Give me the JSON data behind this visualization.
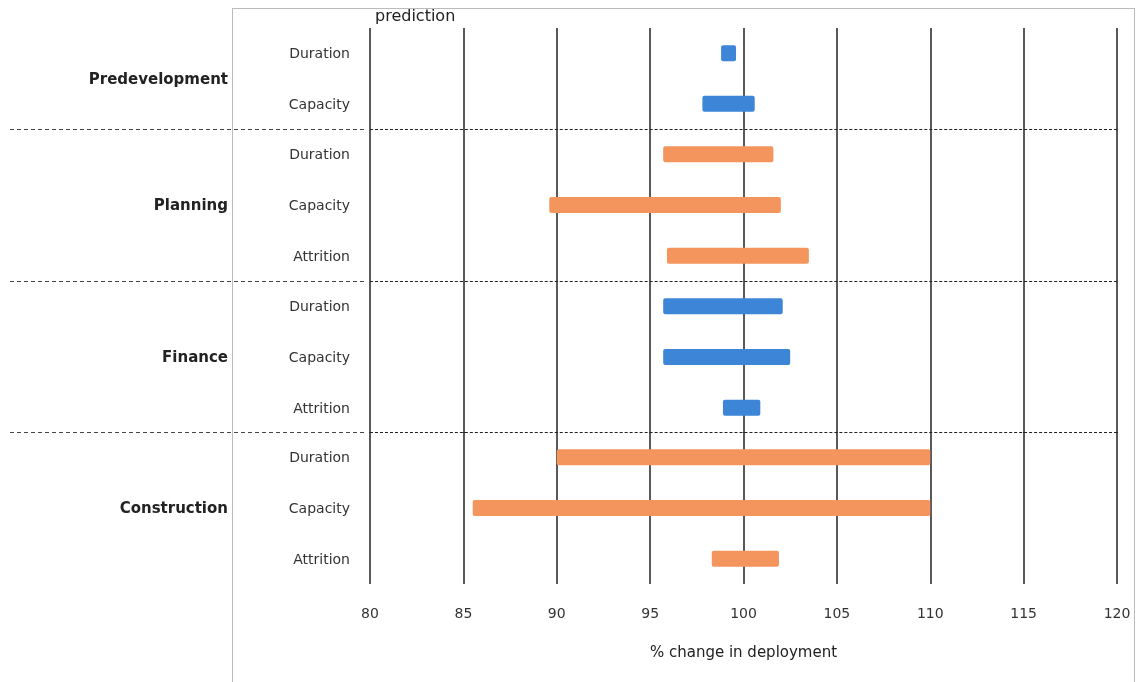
{
  "chart_data": [
    {
      "type": "bar",
      "orientation": "horizontal",
      "title": "prediction",
      "ylabel": "Predevelopment",
      "categories": [
        "Duration",
        "Capacity"
      ],
      "base": [
        98.8,
        97.8
      ],
      "values": [
        0.8,
        2.8
      ],
      "colors": [
        "#3d85d6",
        "#3d85d6"
      ],
      "xlim": [
        80,
        120
      ],
      "xticks": [
        80,
        85,
        90,
        95,
        100,
        105,
        110,
        115,
        120
      ],
      "grid": "x",
      "tick_labels": "y"
    },
    {
      "type": "bar",
      "orientation": "horizontal",
      "ylabel": "Planning",
      "categories": [
        "Duration",
        "Capacity",
        "Attrition"
      ],
      "base": [
        95.7,
        89.6,
        95.9
      ],
      "values": [
        5.9,
        12.4,
        7.6
      ],
      "colors": [
        "#f4955e",
        "#f4955e",
        "#f4955e"
      ],
      "xlim": [
        80,
        120
      ],
      "xticks": [
        80,
        85,
        90,
        95,
        100,
        105,
        110,
        115,
        120
      ],
      "grid": "x",
      "tick_labels": "y"
    },
    {
      "type": "bar",
      "orientation": "horizontal",
      "ylabel": "Finance",
      "categories": [
        "Duration",
        "Capacity",
        "Attrition"
      ],
      "base": [
        95.7,
        95.7,
        98.9
      ],
      "values": [
        6.4,
        6.8,
        2
      ],
      "colors": [
        "#3d85d6",
        "#3d85d6",
        "#3d85d6"
      ],
      "xlim": [
        80,
        120
      ],
      "xticks": [
        80,
        85,
        90,
        95,
        100,
        105,
        110,
        115,
        120
      ],
      "grid": "x",
      "tick_labels": "y"
    },
    {
      "type": "bar",
      "orientation": "horizontal",
      "ylabel": "Construction",
      "xlabel": "% change in deployment",
      "categories": [
        "Duration",
        "Capacity",
        "Attrition"
      ],
      "base": [
        90,
        85.5,
        98.3
      ],
      "values": [
        20,
        24.5,
        3.6
      ],
      "colors": [
        "#f4955e",
        "#f4955e",
        "#f4955e"
      ],
      "xlim": [
        80,
        120
      ],
      "xticks": [
        80,
        85,
        90,
        95,
        100,
        105,
        110,
        115,
        120
      ],
      "grid": "x"
    }
  ]
}
